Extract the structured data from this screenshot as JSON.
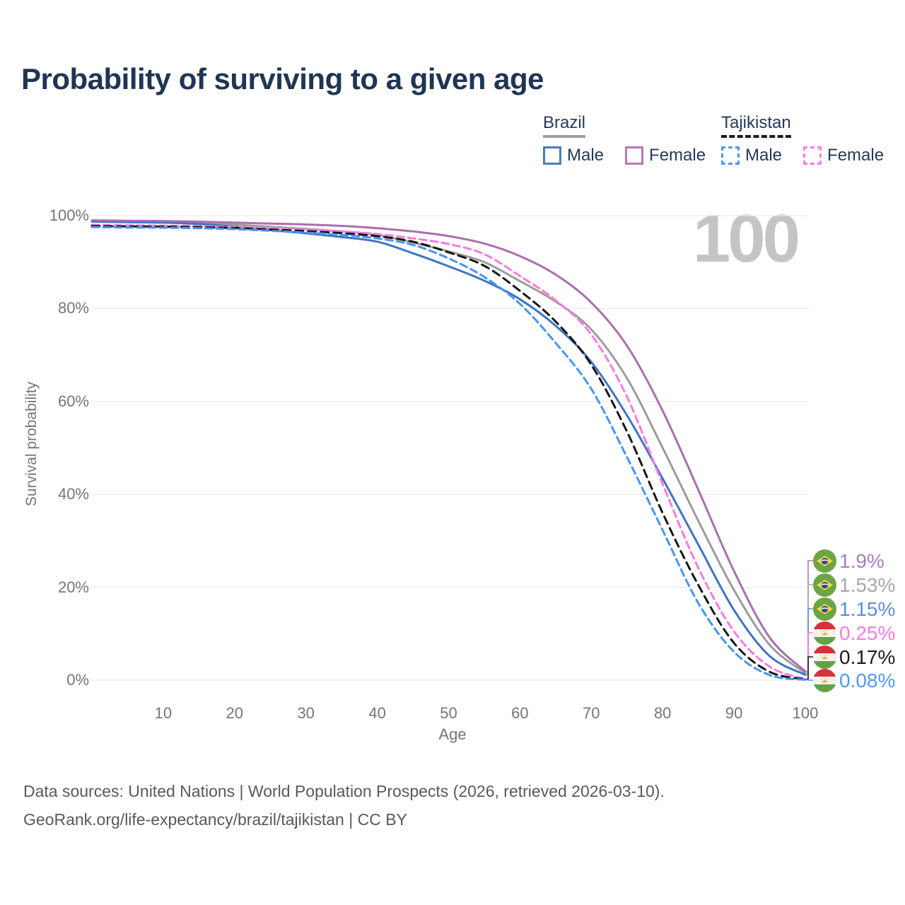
{
  "page_title": "Probability of surviving to a given age",
  "watermark_age": "100",
  "legend": {
    "groups": [
      {
        "label": "Brazil",
        "line": "solid",
        "line_color": "#9e9e9e",
        "items": [
          {
            "label": "Male",
            "color": "#4a7cbe"
          },
          {
            "label": "Female",
            "color": "#b778b7"
          }
        ]
      },
      {
        "label": "Tajikistan",
        "line": "dashed",
        "line_color": "#1c1c1c",
        "items": [
          {
            "label": "Male",
            "color": "#4f9af3"
          },
          {
            "label": "Female",
            "color": "#fb7ce4"
          }
        ]
      }
    ]
  },
  "chart_data": {
    "type": "line",
    "title": "Probability of surviving to a given age",
    "xlabel": "Age",
    "ylabel": "Survival probability",
    "xlim": [
      0,
      100
    ],
    "ylim": [
      0,
      100
    ],
    "grid": "horizontal-only",
    "legend_position": "top-right",
    "x_ticks": [
      10,
      20,
      30,
      40,
      50,
      60,
      70,
      80,
      90,
      100
    ],
    "y_ticks": [
      0,
      20,
      40,
      60,
      80,
      100
    ],
    "y_tick_format": "percent",
    "ages": [
      0,
      5,
      10,
      15,
      20,
      25,
      30,
      35,
      40,
      45,
      50,
      55,
      60,
      65,
      70,
      75,
      80,
      85,
      90,
      95,
      100
    ],
    "series": [
      {
        "name": "Brazil All",
        "country": "Brazil",
        "sex": "all",
        "style": "solid",
        "color": "#9c9c9c",
        "end_label": "1.53%",
        "end_value": 1.53,
        "label_color": "#a8a8a8",
        "flag": "brazil",
        "values": [
          98.85,
          98.75,
          98.68,
          98.45,
          98.05,
          97.6,
          97.15,
          96.6,
          95.85,
          94.2,
          92.3,
          90.0,
          85.9,
          81.5,
          75.5,
          65.0,
          50.0,
          34.3,
          19.4,
          7.6,
          1.53
        ]
      },
      {
        "name": "Brazil Male",
        "country": "Brazil",
        "sex": "male",
        "style": "solid",
        "color": "#3f74c2",
        "end_label": "1.15%",
        "end_value": 1.15,
        "label_color": "#5e8ed2",
        "flag": "brazil",
        "values": [
          98.7,
          98.6,
          98.5,
          98.2,
          97.6,
          96.9,
          96.2,
          95.4,
          94.4,
          91.9,
          89.1,
          86.0,
          82.0,
          76.3,
          68.5,
          57.0,
          43.4,
          29.2,
          15.1,
          5.2,
          1.15
        ]
      },
      {
        "name": "Brazil Female",
        "country": "Brazil",
        "sex": "female",
        "style": "solid",
        "color": "#a96fae",
        "end_label": "1.9%",
        "end_value": 1.9,
        "label_color": "#aa7cba",
        "flag": "brazil",
        "values": [
          99.0,
          98.9,
          98.85,
          98.7,
          98.5,
          98.3,
          98.1,
          97.8,
          97.3,
          96.6,
          95.6,
          94.0,
          91.3,
          87.3,
          81.3,
          72.0,
          58.0,
          41.0,
          23.5,
          9.2,
          1.9
        ]
      },
      {
        "name": "Tajikistan Female",
        "country": "Tajikistan",
        "sex": "female",
        "style": "dashed",
        "color": "#f97ae0",
        "end_label": "0.25%",
        "end_value": 0.25,
        "label_color": "#fb7ae3",
        "flag": "tajikistan",
        "values": [
          98.0,
          97.9,
          97.85,
          97.75,
          97.55,
          97.3,
          97.0,
          96.6,
          96.05,
          95.1,
          93.9,
          91.7,
          87.0,
          81.8,
          74.4,
          61.0,
          42.2,
          24.2,
          10.5,
          2.9,
          0.25
        ]
      },
      {
        "name": "Tajikistan All",
        "country": "Tajikistan",
        "sex": "all",
        "style": "dashed",
        "color": "#161616",
        "end_label": "0.17%",
        "end_value": 0.17,
        "label_color": "#1b1b1b",
        "flag": "tajikistan",
        "values": [
          97.78,
          97.68,
          97.63,
          97.53,
          97.33,
          97.03,
          96.68,
          96.23,
          95.58,
          94.4,
          92.1,
          89.2,
          83.8,
          77.2,
          67.9,
          53.5,
          36.0,
          20.5,
          8.0,
          1.8,
          0.17
        ]
      },
      {
        "name": "Tajikistan Male",
        "country": "Tajikistan",
        "sex": "male",
        "style": "dashed",
        "color": "#4695f2",
        "end_label": "0.08%",
        "end_value": 0.08,
        "label_color": "#4e9af5",
        "flag": "tajikistan",
        "values": [
          97.55,
          97.45,
          97.4,
          97.3,
          97.1,
          96.75,
          96.35,
          95.85,
          95.1,
          93.7,
          90.8,
          86.8,
          81.0,
          72.6,
          62.7,
          48.0,
          32.3,
          16.6,
          6.1,
          1.1,
          0.08
        ]
      }
    ]
  },
  "footer": {
    "line1": "Data sources: United Nations | World Population Prospects (2026, retrieved 2026-03-10).",
    "line2": "GeoRank.org/life-expectancy/brazil/tajikistan | CC BY"
  }
}
